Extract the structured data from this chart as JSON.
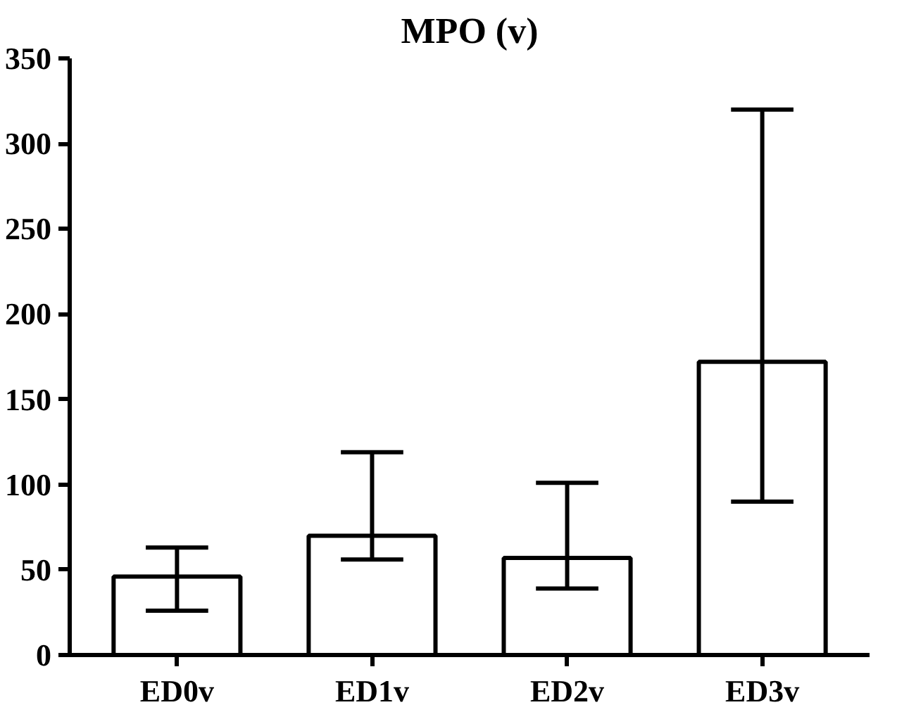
{
  "chart_data": {
    "type": "bar",
    "title": "MPO (v)",
    "categories": [
      "ED0v",
      "ED1v",
      "ED2v",
      "ED3v"
    ],
    "values": [
      46,
      70,
      57,
      172
    ],
    "errors": [
      [
        26,
        63
      ],
      [
        56,
        119
      ],
      [
        39,
        101
      ],
      [
        90,
        320
      ]
    ],
    "color": "#ffffff",
    "ylim": [
      0,
      350
    ],
    "yticks": [
      0,
      50,
      100,
      150,
      200,
      250,
      300,
      350
    ],
    "grid": false
  }
}
